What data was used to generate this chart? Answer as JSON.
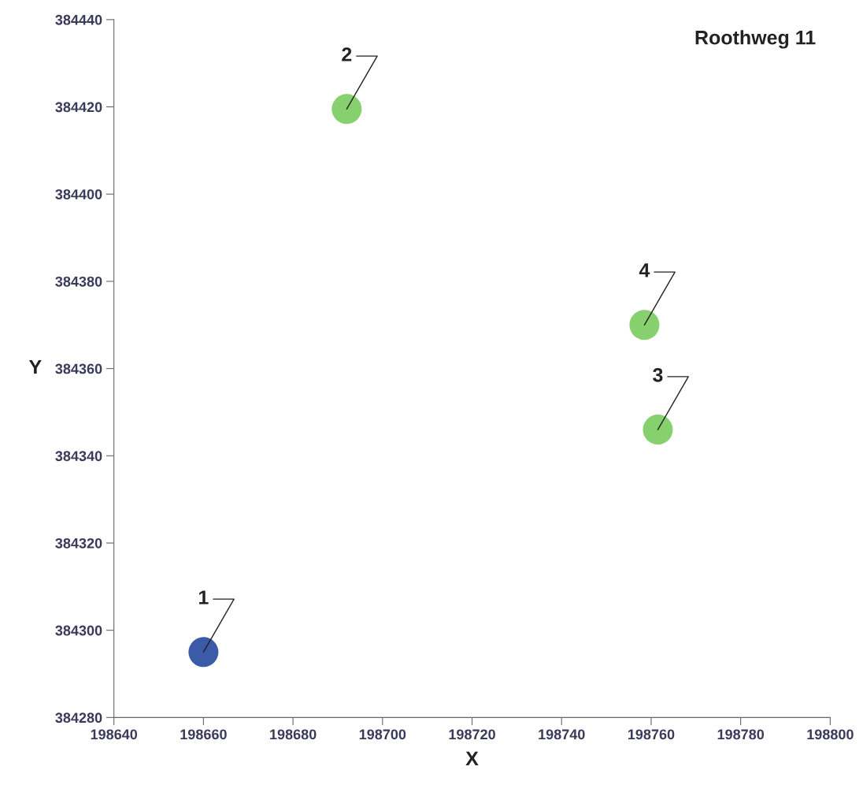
{
  "chart_data": {
    "type": "scatter",
    "title": "Roothweg 11",
    "xlabel": "X",
    "ylabel": "Y",
    "x": [
      198660,
      198692,
      198761.5,
      198758.5
    ],
    "values": [
      384295,
      384419.5,
      384346,
      384370
    ],
    "colors": [
      "#3b5aa8",
      "#86d06e",
      "#86d06e",
      "#86d06e"
    ],
    "annotations": [
      {
        "text": "1",
        "x": 198660,
        "y": 384295
      },
      {
        "text": "2",
        "x": 198692,
        "y": 384419.5
      },
      {
        "text": "3",
        "x": 198761.5,
        "y": 384346
      },
      {
        "text": "4",
        "x": 198758.5,
        "y": 384370
      }
    ],
    "xlim": [
      198640,
      198800
    ],
    "xticks": [
      198640,
      198660,
      198680,
      198700,
      198720,
      198740,
      198760,
      198780,
      198800
    ],
    "ylim": [
      384280,
      384440
    ],
    "yticks": [
      384280,
      384300,
      384320,
      384340,
      384360,
      384380,
      384400,
      384420,
      384440
    ],
    "grid": false,
    "marker": "circle"
  }
}
